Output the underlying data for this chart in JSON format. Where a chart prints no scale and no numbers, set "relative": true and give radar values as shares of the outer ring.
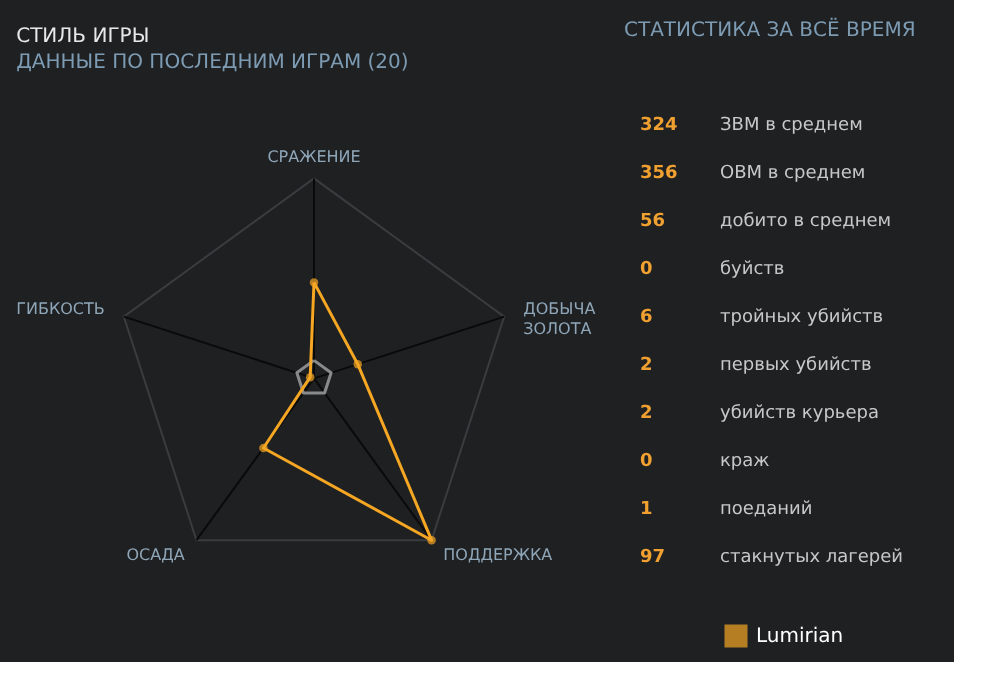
{
  "chart_data": [
    {
      "type": "radar",
      "title": "СТИЛЬ ИГРЫ",
      "subtitle": "ДАННЫЕ ПО ПОСЛЕДНИМ ИГРАМ (20)",
      "relative": true,
      "categories": [
        "СРАЖЕНИЕ",
        "ДОБЫЧА ЗОЛОТА",
        "ПОДДЕРЖКА",
        "ОСАДА",
        "ГИБКОСТЬ"
      ],
      "series": [
        {
          "color": "#8a8a8a",
          "values": [
            0.09,
            0.09,
            0.09,
            0.09,
            0.09
          ]
        },
        {
          "name": "Lumirian",
          "color": "#f5a623",
          "values": [
            0.48,
            0.23,
            1.0,
            0.43,
            0.02
          ]
        }
      ],
      "grid": true,
      "marker": "circle",
      "line_style": "solid",
      "legend": "bottom right"
    },
    {
      "type": "other",
      "title": "СТАТИСТИКА ЗА ВСЁ ВРЕМЯ",
      "annotations": [
        "324",
        "ЗВМ в среднем",
        "356",
        "ОВМ в среднем",
        "56",
        "добито в среднем",
        "0",
        "буйств",
        "6",
        "тройных убийств",
        "2",
        "первых убийств",
        "2",
        "убийств курьера",
        "0",
        "краж",
        "1",
        "поеданий",
        "97",
        "стакнутых лагерей"
      ]
    }
  ]
}
